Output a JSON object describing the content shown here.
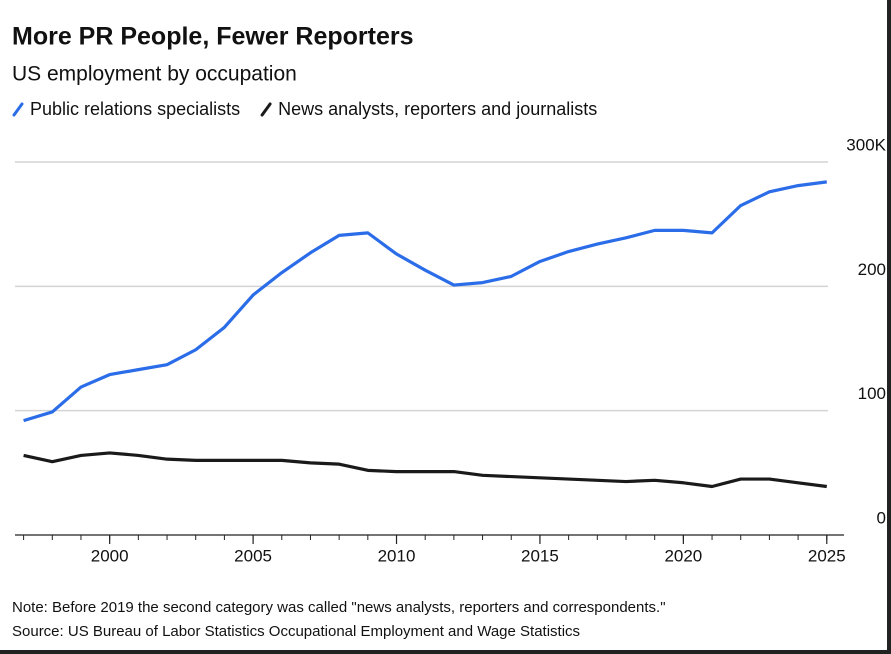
{
  "chart_data": {
    "type": "line",
    "title": "More PR People, Fewer Reporters",
    "subtitle": "US employment by occupation",
    "note": "Note: Before 2019 the second category was called \"news analysts, reporters and correspondents.\"",
    "source": "Source: US Bureau of Labor Statistics Occupational Employment and Wage Statistics",
    "x": [
      1997,
      1998,
      1999,
      2000,
      2001,
      2002,
      2003,
      2004,
      2005,
      2006,
      2007,
      2008,
      2009,
      2010,
      2011,
      2012,
      2013,
      2014,
      2015,
      2016,
      2017,
      2018,
      2019,
      2020,
      2021,
      2022,
      2023,
      2024,
      2025
    ],
    "series": [
      {
        "name": "Public relations specialists",
        "color": "#2b6de8",
        "values": [
          92,
          99,
          119,
          129,
          133,
          137,
          149,
          167,
          193,
          211,
          227,
          241,
          243,
          226,
          213,
          201,
          203,
          208,
          220,
          228,
          234,
          239,
          245,
          245,
          243,
          265,
          276,
          281,
          284
        ]
      },
      {
        "name": "News analysts, reporters and journalists",
        "color": "#1a1a1a",
        "values": [
          64,
          59,
          64,
          66,
          64,
          61,
          60,
          60,
          60,
          60,
          58,
          57,
          52,
          51,
          51,
          51,
          48,
          47,
          46,
          45,
          44,
          43,
          44,
          42,
          39,
          45,
          45,
          42,
          39
        ]
      }
    ],
    "xlim": [
      1996.7,
      2025.6
    ],
    "xticks": [
      2000,
      2005,
      2010,
      2015,
      2020,
      2025
    ],
    "xminorticks": [
      1997,
      1998,
      1999,
      2000,
      2001,
      2002,
      2003,
      2004,
      2005,
      2006,
      2007,
      2008,
      2009,
      2010,
      2011,
      2012,
      2013,
      2014,
      2015,
      2016,
      2017,
      2018,
      2019,
      2020,
      2021,
      2022,
      2023,
      2024,
      2025
    ],
    "ylim": [
      0,
      300
    ],
    "yticks": [
      0,
      100,
      200,
      {
        "value": 300,
        "label": "300K"
      }
    ],
    "grid": true
  }
}
